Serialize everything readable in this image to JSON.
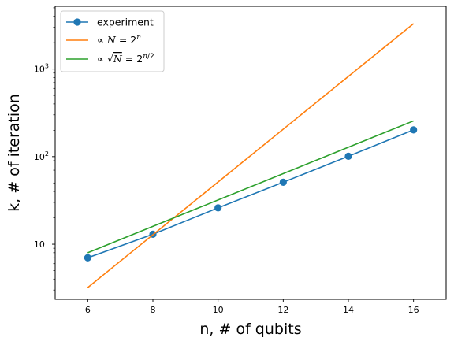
{
  "chart_data": {
    "type": "line",
    "xlabel": "n, # of qubits",
    "ylabel": "k, # of iteration",
    "xlim": [
      5,
      17
    ],
    "ylim": [
      2.35,
      5200
    ],
    "yscale": "log",
    "x_ticks": [
      6,
      8,
      10,
      12,
      14,
      16
    ],
    "y_ticks": [
      {
        "value": 10,
        "base": "10",
        "exp": "1"
      },
      {
        "value": 100,
        "base": "10",
        "exp": "2"
      },
      {
        "value": 1000,
        "base": "10",
        "exp": "3"
      }
    ],
    "legend_position": "upper-left",
    "series": [
      {
        "name": "experiment",
        "color": "#1f77b4",
        "marker": "circle",
        "x": [
          6,
          8,
          10,
          12,
          14,
          16
        ],
        "y": [
          7,
          13,
          26,
          51,
          101,
          202
        ]
      },
      {
        "name": "∝ N = 2ⁿ",
        "color": "#ff7f0e",
        "marker": "none",
        "x": [
          6,
          16
        ],
        "y": [
          3.2,
          3300
        ]
      },
      {
        "name": "∝ √N = 2ⁿᐟ²",
        "color": "#2ca02c",
        "marker": "none",
        "x": [
          6,
          16
        ],
        "y": [
          8,
          256
        ]
      }
    ]
  }
}
